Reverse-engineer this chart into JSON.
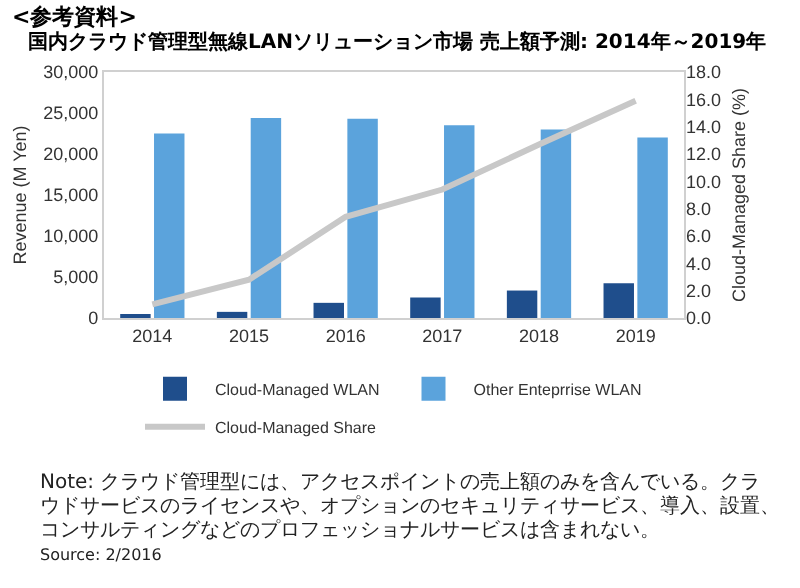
{
  "chart_data": {
    "type": "bar",
    "title": "<参考資料>",
    "subtitle": "国内クラウド管理型無線LANソリューション市場 売上額予測: 2014年～2019年",
    "categories": [
      "2014",
      "2015",
      "2016",
      "2017",
      "2018",
      "2019"
    ],
    "series": [
      {
        "name": "Cloud-Managed WLAN",
        "color": "#1f4e8c",
        "values": [
          250,
          750,
          1850,
          2500,
          3350,
          4250
        ]
      },
      {
        "name": "Other Enteprrise WLAN",
        "color": "#5ba3dc",
        "values": [
          22500,
          24400,
          24300,
          23500,
          23000,
          22000
        ]
      },
      {
        "name": "Cloud-Managed Share",
        "type": "line",
        "axis": "y2",
        "color": "#c8c8c8",
        "values": [
          1.0,
          2.8,
          7.4,
          9.4,
          12.7,
          15.9
        ]
      }
    ],
    "ylabel": "Revenue (M Yen)",
    "y2label": "Cloud-Managed Share (%)",
    "ylim": [
      0,
      30000
    ],
    "yticks": [
      {
        "value": 0,
        "label": "0"
      },
      {
        "value": 5000,
        "label": "5,000"
      },
      {
        "value": 10000,
        "label": "10,000"
      },
      {
        "value": 15000,
        "label": "15,000"
      },
      {
        "value": 20000,
        "label": "20,000"
      },
      {
        "value": 25000,
        "label": "25,000"
      },
      {
        "value": 30000,
        "label": "30,000"
      }
    ],
    "y2lim": [
      0,
      18
    ],
    "y2ticks": [
      {
        "value": 0,
        "label": "0.0"
      },
      {
        "value": 2,
        "label": "2.0"
      },
      {
        "value": 4,
        "label": "4.0"
      },
      {
        "value": 6,
        "label": "6.0"
      },
      {
        "value": 8,
        "label": "8.0"
      },
      {
        "value": 10,
        "label": "10.0"
      },
      {
        "value": 12,
        "label": "12.0"
      },
      {
        "value": 14,
        "label": "14.0"
      },
      {
        "value": 16,
        "label": "16.0"
      },
      {
        "value": 18,
        "label": "18.0"
      }
    ],
    "grid": false,
    "legend": "bottom",
    "marker": "none",
    "line_style": "solid",
    "annotations": [
      "Note: クラウド管理型には、アクセスポイントの売上額のみを含んでいる。クラウドサービスのライセンスや、オプションのセキュリティサービス、導入、設置、コンサルティングなどのプロフェッショナルサービスは含まれない。",
      "Source: 2/2016"
    ]
  }
}
